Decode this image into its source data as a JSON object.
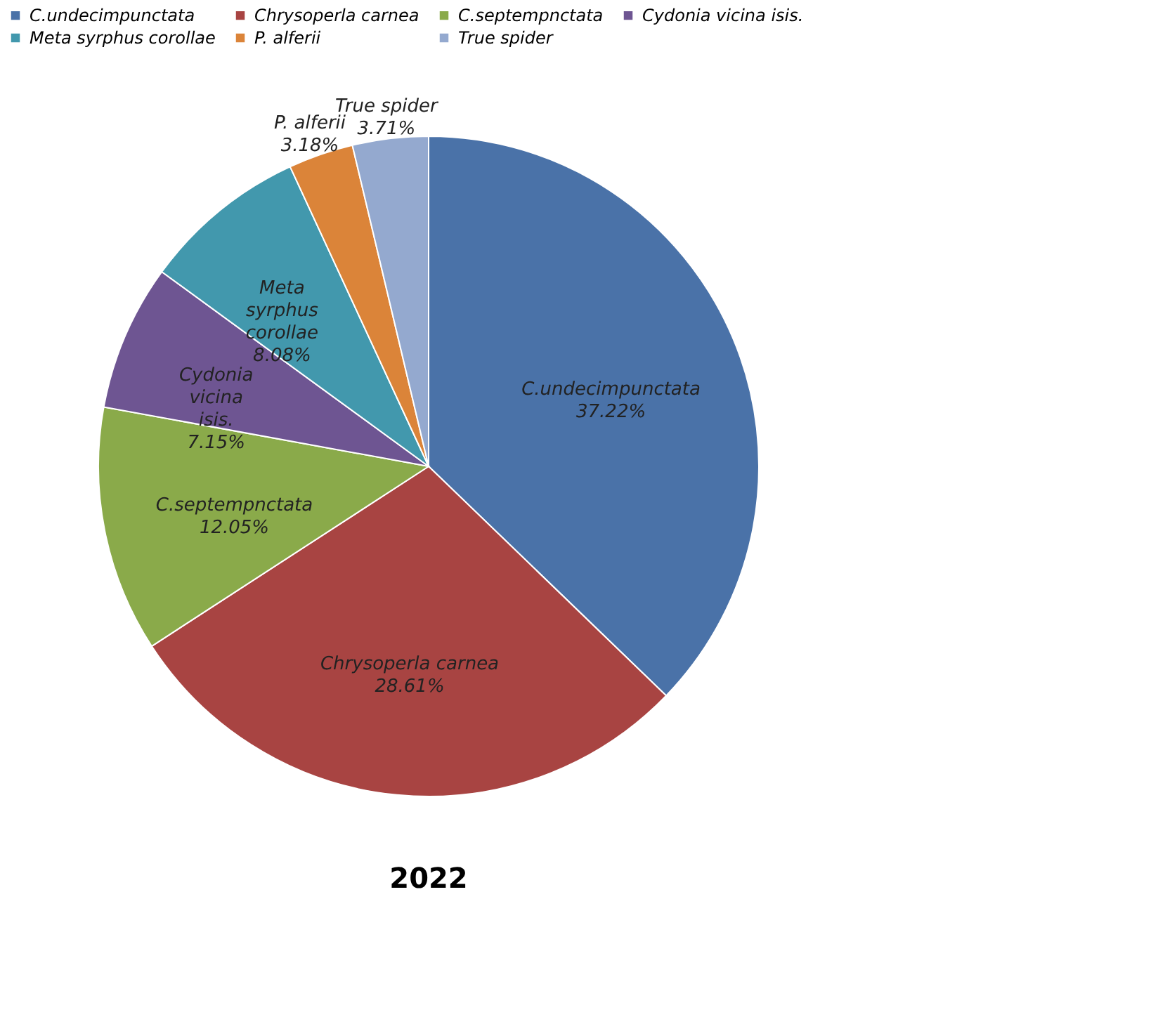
{
  "chart_data": {
    "type": "pie",
    "title": "2022",
    "legend": "top",
    "value_labels": [
      "37.22%",
      "28.61%",
      "12.05%",
      "7.15%",
      "8.08%",
      "3.18%",
      "3.71%"
    ],
    "categories": [
      "C.undecimpunctata",
      "Chrysoperla carnea",
      "C.septempnctata",
      "Cydonia vicina  isis.",
      "Meta syrphus corollae",
      "P. alferii",
      "True spider"
    ],
    "values": [
      37.22,
      28.61,
      12.05,
      7.15,
      8.08,
      3.18,
      3.71
    ],
    "colors": [
      "#4a72a8",
      "#a84442",
      "#8aaa4a",
      "#6e5592",
      "#4298ad",
      "#db8439",
      "#94a9cf"
    ]
  }
}
